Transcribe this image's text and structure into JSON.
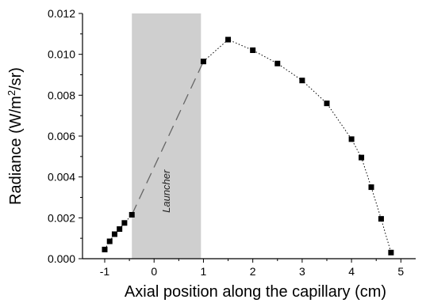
{
  "chart_data": {
    "type": "scatter",
    "xlabel": "Axial position along the capillary (cm)",
    "ylabel_parts": {
      "pre": "Radiance (W/m",
      "sup": "2",
      "post": "/sr)"
    },
    "xlim": [
      -1.45,
      5.3
    ],
    "ylim": [
      0,
      0.012
    ],
    "x_ticks": [
      -1,
      0,
      1,
      2,
      3,
      4,
      5
    ],
    "x_tick_labels": [
      "-1",
      "0",
      "1",
      "2",
      "3",
      "4",
      "5"
    ],
    "y_ticks": [
      0,
      0.002,
      0.004,
      0.006,
      0.008,
      0.01,
      0.012
    ],
    "y_tick_labels": [
      "0.000",
      "0.002",
      "0.004",
      "0.006",
      "0.008",
      "0.010",
      "0.012"
    ],
    "shaded_region": {
      "x_start": -0.45,
      "x_end": 0.95,
      "label": "Launcher",
      "color": "#cfcfcf"
    },
    "points": [
      {
        "x": -1.0,
        "y": 0.00045
      },
      {
        "x": -0.9,
        "y": 0.00085
      },
      {
        "x": -0.8,
        "y": 0.0012
      },
      {
        "x": -0.7,
        "y": 0.00145
      },
      {
        "x": -0.6,
        "y": 0.00175
      },
      {
        "x": -0.45,
        "y": 0.00215
      },
      {
        "x": 1.0,
        "y": 0.00965
      },
      {
        "x": 1.5,
        "y": 0.01072
      },
      {
        "x": 2.0,
        "y": 0.0102
      },
      {
        "x": 2.5,
        "y": 0.00955
      },
      {
        "x": 3.0,
        "y": 0.00872
      },
      {
        "x": 3.5,
        "y": 0.0076
      },
      {
        "x": 4.0,
        "y": 0.00585
      },
      {
        "x": 4.2,
        "y": 0.00495
      },
      {
        "x": 4.4,
        "y": 0.0035
      },
      {
        "x": 4.6,
        "y": 0.00195
      },
      {
        "x": 4.8,
        "y": 0.0003
      }
    ],
    "dashed_segment": {
      "from": {
        "x": -0.45,
        "y": 0.00215
      },
      "to": {
        "x": 1.0,
        "y": 0.00965
      }
    }
  }
}
